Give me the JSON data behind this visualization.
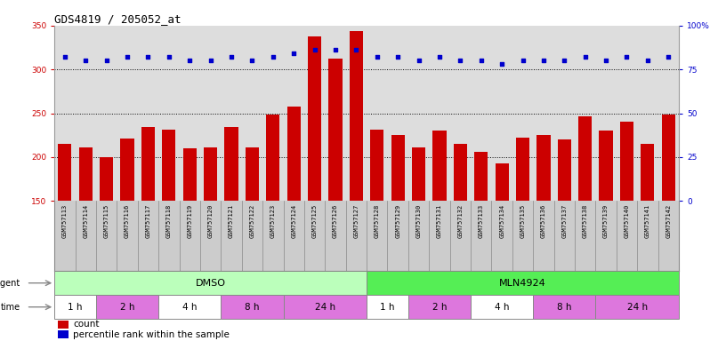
{
  "title": "GDS4819 / 205052_at",
  "samples": [
    "GSM757113",
    "GSM757114",
    "GSM757115",
    "GSM757116",
    "GSM757117",
    "GSM757118",
    "GSM757119",
    "GSM757120",
    "GSM757121",
    "GSM757122",
    "GSM757123",
    "GSM757124",
    "GSM757125",
    "GSM757126",
    "GSM757127",
    "GSM757128",
    "GSM757129",
    "GSM757130",
    "GSM757131",
    "GSM757132",
    "GSM757133",
    "GSM757134",
    "GSM757135",
    "GSM757136",
    "GSM757137",
    "GSM757138",
    "GSM757139",
    "GSM757140",
    "GSM757141",
    "GSM757142"
  ],
  "counts": [
    215,
    211,
    200,
    221,
    234,
    231,
    210,
    211,
    234,
    211,
    248,
    258,
    338,
    312,
    344,
    231,
    225,
    211,
    230,
    215,
    206,
    193,
    222,
    225,
    220,
    246,
    230,
    240,
    215,
    248
  ],
  "percentile_ranks": [
    82,
    80,
    80,
    82,
    82,
    82,
    80,
    80,
    82,
    80,
    82,
    84,
    86,
    86,
    86,
    82,
    82,
    80,
    82,
    80,
    80,
    78,
    80,
    80,
    80,
    82,
    80,
    82,
    80,
    82
  ],
  "bar_color": "#cc0000",
  "dot_color": "#0000cc",
  "ylim_left": [
    150,
    350
  ],
  "ylim_right": [
    0,
    100
  ],
  "yticks_left": [
    150,
    200,
    250,
    300,
    350
  ],
  "yticks_right": [
    0,
    25,
    50,
    75,
    100
  ],
  "ytick_labels_right": [
    "0",
    "25",
    "50",
    "75",
    "100%"
  ],
  "gridlines": [
    200,
    250,
    300
  ],
  "agent_dmso_label": "DMSO",
  "agent_mln_label": "MLN4924",
  "dmso_color": "#bbffbb",
  "mln_color": "#55ee55",
  "time_color_white": "#ffffff",
  "time_color_pink": "#dd77dd",
  "dmso_sample_count": 15,
  "time_groups": [
    {
      "label": "1 h",
      "start": 0,
      "end": 2,
      "pink": false
    },
    {
      "label": "2 h",
      "start": 2,
      "end": 5,
      "pink": true
    },
    {
      "label": "4 h",
      "start": 5,
      "end": 8,
      "pink": false
    },
    {
      "label": "8 h",
      "start": 8,
      "end": 11,
      "pink": true
    },
    {
      "label": "24 h",
      "start": 11,
      "end": 15,
      "pink": true
    },
    {
      "label": "1 h",
      "start": 15,
      "end": 17,
      "pink": false
    },
    {
      "label": "2 h",
      "start": 17,
      "end": 20,
      "pink": true
    },
    {
      "label": "4 h",
      "start": 20,
      "end": 23,
      "pink": false
    },
    {
      "label": "8 h",
      "start": 23,
      "end": 26,
      "pink": true
    },
    {
      "label": "24 h",
      "start": 26,
      "end": 30,
      "pink": true
    }
  ],
  "agent_label": "agent",
  "time_label": "time",
  "legend_count_label": "count",
  "legend_pct_label": "percentile rank within the sample",
  "chart_bg": "#dddddd",
  "xtick_bg": "#cccccc",
  "title_fontsize": 9,
  "tick_fontsize": 6.5,
  "bar_width": 0.65
}
